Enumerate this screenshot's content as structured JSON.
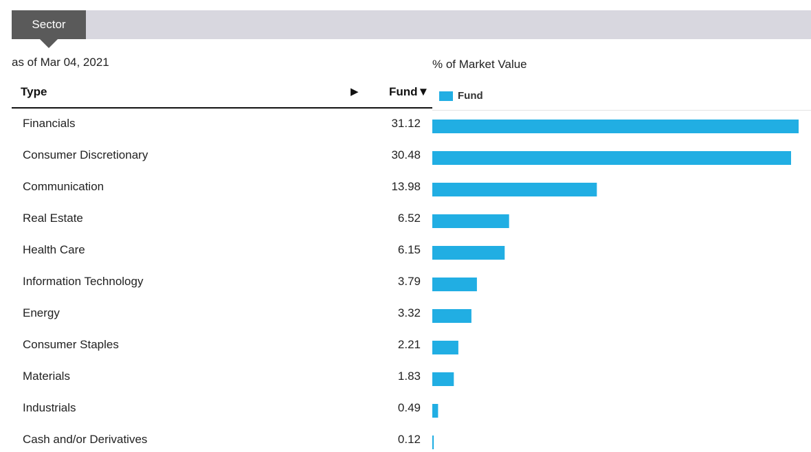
{
  "tabs": {
    "active_label": "Sector"
  },
  "as_of": "as of Mar 04, 2021",
  "table": {
    "col_type": "Type",
    "col_fund": "Fund▼",
    "arrow": "▶"
  },
  "colors": {
    "bar": "#21aee3",
    "tab_active": "#5a5a5a",
    "tab_bar": "#d8d7df"
  },
  "chart_data": {
    "type": "bar",
    "orientation": "horizontal",
    "title": "% of Market Value",
    "legend": [
      "Fund"
    ],
    "legend_position": "top-left",
    "grid": false,
    "xlim": [
      0,
      31.12
    ],
    "categories": [
      "Financials",
      "Consumer Discretionary",
      "Communication",
      "Real Estate",
      "Health Care",
      "Information Technology",
      "Energy",
      "Consumer Staples",
      "Materials",
      "Industrials",
      "Cash and/or Derivatives"
    ],
    "series": [
      {
        "name": "Fund",
        "values": [
          31.12,
          30.48,
          13.98,
          6.52,
          6.15,
          3.79,
          3.32,
          2.21,
          1.83,
          0.49,
          0.12
        ],
        "labels": [
          "31.12",
          "30.48",
          "13.98",
          "6.52",
          "6.15",
          "3.79",
          "3.32",
          "2.21",
          "1.83",
          "0.49",
          "0.12"
        ]
      }
    ]
  }
}
